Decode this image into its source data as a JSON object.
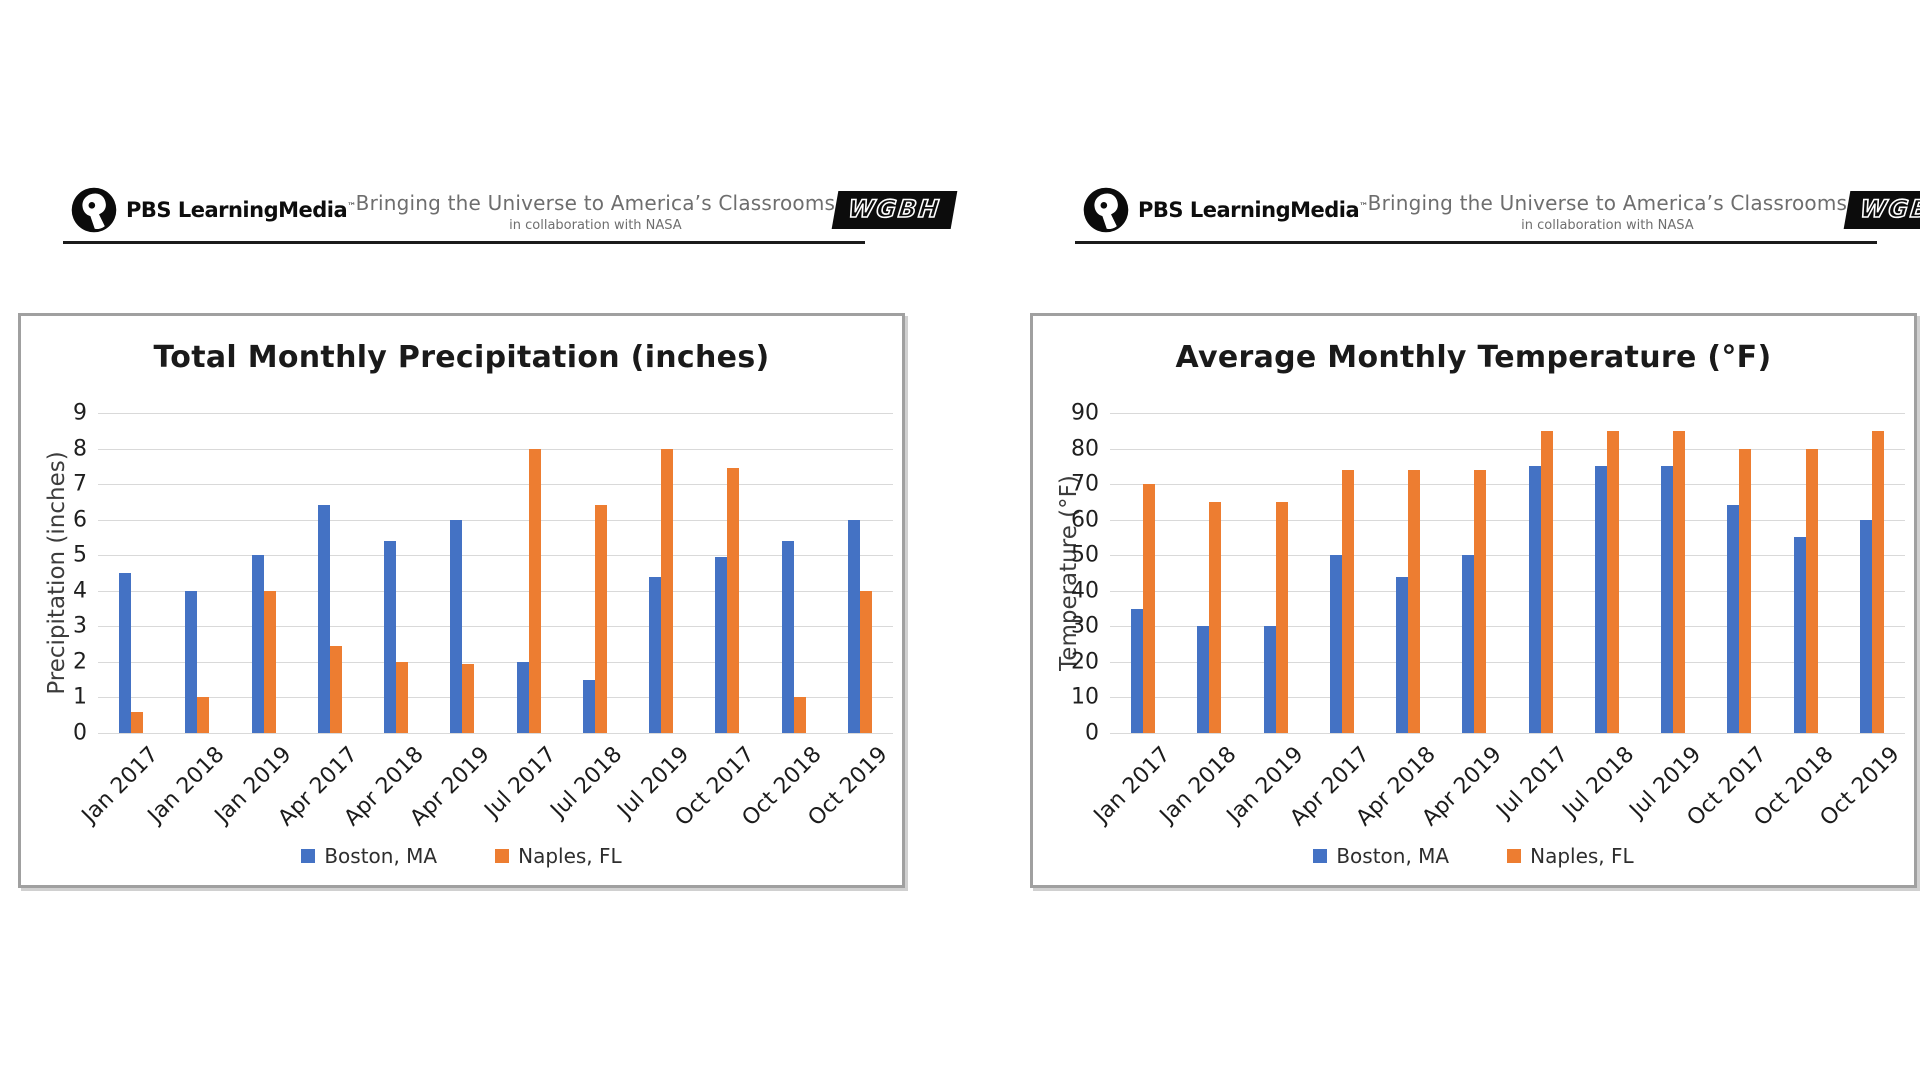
{
  "header": {
    "pbs_name": "PBS LearningMedia",
    "pbs_tm": "™",
    "tagline_line1": "Bringing the Universe to America’s Classrooms",
    "tagline_line2": "in collaboration with NASA",
    "wgbh": "WGBH"
  },
  "colors": {
    "boston_blue": "#4472C4",
    "naples_orange": "#ED7D31",
    "gridline": "#D9D9D9",
    "card_border": "#A0A0A0",
    "header_rule": "#1B1B1B",
    "tagline_text": "#6E6E6E"
  },
  "chart_data": [
    {
      "type": "bar",
      "title": "Total Monthly Precipitation (inches)",
      "xlabel": "",
      "ylabel": "Precipitation (inches)",
      "ylim": [
        0,
        9
      ],
      "ytick_step": 1,
      "grid": true,
      "legend_position": "bottom",
      "categories": [
        "Jan 2017",
        "Jan 2018",
        "Jan 2019",
        "Apr 2017",
        "Apr 2018",
        "Apr 2019",
        "Jul 2017",
        "Jul 2018",
        "Jul 2019",
        "Oct 2017",
        "Oct 2018",
        "Oct 2019"
      ],
      "series": [
        {
          "name": "Boston, MA",
          "color": "#4472C4",
          "values": [
            4.5,
            4.0,
            5.0,
            6.4,
            5.4,
            6.0,
            2.0,
            1.5,
            4.4,
            4.95,
            5.4,
            6.0
          ]
        },
        {
          "name": "Naples, FL",
          "color": "#ED7D31",
          "values": [
            0.6,
            1.0,
            4.0,
            2.45,
            2.0,
            1.95,
            8.0,
            6.4,
            8.0,
            7.45,
            1.0,
            4.0
          ]
        }
      ]
    },
    {
      "type": "bar",
      "title": "Average Monthly Temperature (°F)",
      "xlabel": "",
      "ylabel": "Temperature (°F)",
      "ylim": [
        0,
        90
      ],
      "ytick_step": 10,
      "grid": true,
      "legend_position": "bottom",
      "categories": [
        "Jan 2017",
        "Jan 2018",
        "Jan 2019",
        "Apr 2017",
        "Apr 2018",
        "Apr 2019",
        "Jul 2017",
        "Jul 2018",
        "Jul 2019",
        "Oct 2017",
        "Oct 2018",
        "Oct 2019"
      ],
      "series": [
        {
          "name": "Boston, MA",
          "color": "#4472C4",
          "values": [
            35,
            30,
            30,
            50,
            44,
            50,
            75,
            75,
            75,
            64,
            55,
            60
          ]
        },
        {
          "name": "Naples, FL",
          "color": "#ED7D31",
          "values": [
            70,
            65,
            65,
            74,
            74,
            74,
            85,
            85,
            85,
            80,
            80,
            85
          ]
        }
      ]
    }
  ]
}
